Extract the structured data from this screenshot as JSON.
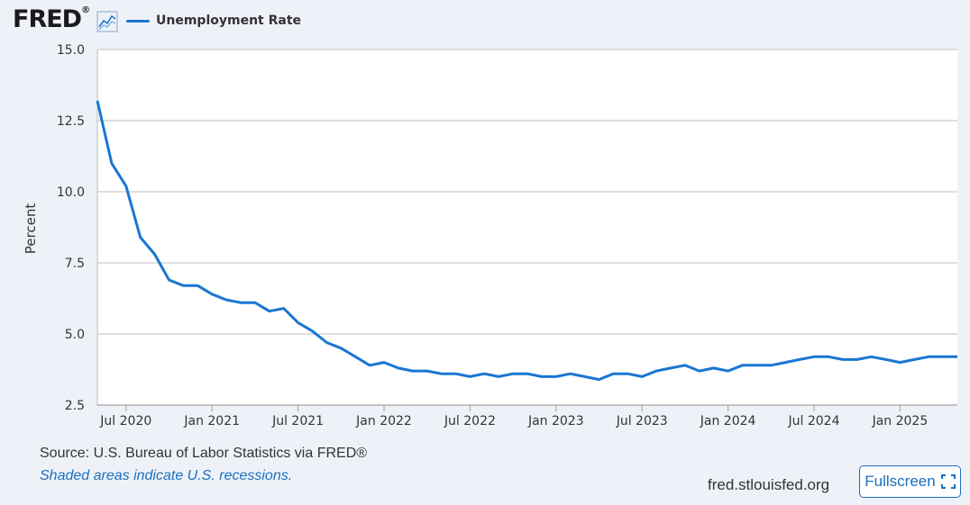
{
  "header": {
    "logo_text": "FRED",
    "logo_mark": "®",
    "logo_icon": "line-graph-icon",
    "legend_label": "Unemployment Rate"
  },
  "footer": {
    "source": "Source: U.S. Bureau of Labor Statistics via FRED®",
    "note": "Shaded areas indicate U.S. recessions.",
    "site": "fred.stlouisfed.org",
    "fullscreen_label": "Fullscreen",
    "fullscreen_icon": "expand-icon"
  },
  "colors": {
    "line": "#1a76d2",
    "grid": "#cccccc",
    "plot_bg": "#ffffff",
    "page_bg": "#eef2f8",
    "link": "#1a6fbf"
  },
  "chart_data": {
    "type": "line",
    "title": "",
    "xlabel": "",
    "ylabel": "Percent",
    "ylim": [
      2.5,
      15.0
    ],
    "yticks": [
      "15.0",
      "12.5",
      "10.0",
      "7.5",
      "5.0",
      "2.5"
    ],
    "xticks": [
      "Jul 2020",
      "Jan 2021",
      "Jul 2021",
      "Jan 2022",
      "Jul 2022",
      "Jan 2023",
      "Jul 2023",
      "Jan 2024",
      "Jul 2024",
      "Jan 2025"
    ],
    "grid": true,
    "legend": "top-left",
    "series": [
      {
        "name": "Unemployment Rate",
        "x": [
          "2020-05",
          "2020-06",
          "2020-07",
          "2020-08",
          "2020-09",
          "2020-10",
          "2020-11",
          "2020-12",
          "2021-01",
          "2021-02",
          "2021-03",
          "2021-04",
          "2021-05",
          "2021-06",
          "2021-07",
          "2021-08",
          "2021-09",
          "2021-10",
          "2021-11",
          "2021-12",
          "2022-01",
          "2022-02",
          "2022-03",
          "2022-04",
          "2022-05",
          "2022-06",
          "2022-07",
          "2022-08",
          "2022-09",
          "2022-10",
          "2022-11",
          "2022-12",
          "2023-01",
          "2023-02",
          "2023-03",
          "2023-04",
          "2023-05",
          "2023-06",
          "2023-07",
          "2023-08",
          "2023-09",
          "2023-10",
          "2023-11",
          "2023-12",
          "2024-01",
          "2024-02",
          "2024-03",
          "2024-04",
          "2024-05",
          "2024-06",
          "2024-07",
          "2024-08",
          "2024-09",
          "2024-10",
          "2024-11",
          "2024-12",
          "2025-01",
          "2025-02",
          "2025-03",
          "2025-04",
          "2025-05"
        ],
        "values": [
          13.2,
          11.0,
          10.2,
          8.4,
          7.8,
          6.9,
          6.7,
          6.7,
          6.4,
          6.2,
          6.1,
          6.1,
          5.8,
          5.9,
          5.4,
          5.1,
          4.7,
          4.5,
          4.2,
          3.9,
          4.0,
          3.8,
          3.7,
          3.7,
          3.6,
          3.6,
          3.5,
          3.6,
          3.5,
          3.6,
          3.6,
          3.5,
          3.5,
          3.6,
          3.5,
          3.4,
          3.6,
          3.6,
          3.5,
          3.7,
          3.8,
          3.9,
          3.7,
          3.8,
          3.7,
          3.9,
          3.9,
          3.9,
          4.0,
          4.1,
          4.2,
          4.2,
          4.1,
          4.1,
          4.2,
          4.1,
          4.0,
          4.1,
          4.2,
          4.2,
          4.2
        ]
      }
    ]
  }
}
